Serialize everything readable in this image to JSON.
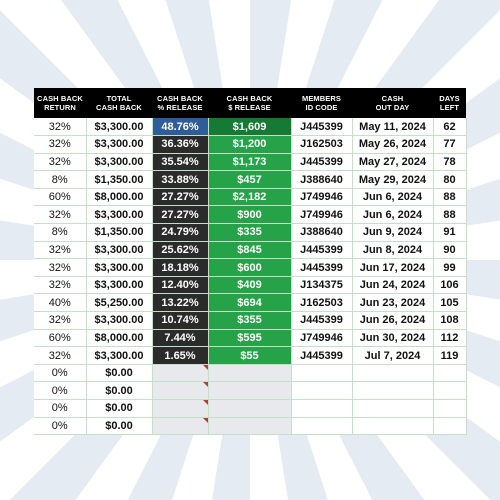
{
  "headers": {
    "return_l1": "CASH BACK",
    "return_l2": "RETURN",
    "total_l1": "TOTAL",
    "total_l2": "CASH BACK",
    "pct_l1": "CASH BACK",
    "pct_l2": "% RELEASE",
    "amt_l1": "CASH BACK",
    "amt_l2": "$ RELEASE",
    "id_l1": "MEMBERS",
    "id_l2": "ID CODE",
    "day_l1": "CASH",
    "day_l2": "OUT DAY",
    "left_l1": "DAYS",
    "left_l2": "LEFT"
  },
  "rows": [
    {
      "ret": "32%",
      "total": "$3,300.00",
      "pct": "48.76%",
      "amt": "$1,609",
      "id": "J445399",
      "day": "May 11, 2024",
      "left": "62"
    },
    {
      "ret": "32%",
      "total": "$3,300.00",
      "pct": "36.36%",
      "amt": "$1,200",
      "id": "J162503",
      "day": "May 26, 2024",
      "left": "77"
    },
    {
      "ret": "32%",
      "total": "$3,300.00",
      "pct": "35.54%",
      "amt": "$1,173",
      "id": "J445399",
      "day": "May 27, 2024",
      "left": "78"
    },
    {
      "ret": "8%",
      "total": "$1,350.00",
      "pct": "33.88%",
      "amt": "$457",
      "id": "J388640",
      "day": "May 29, 2024",
      "left": "80"
    },
    {
      "ret": "60%",
      "total": "$8,000.00",
      "pct": "27.27%",
      "amt": "$2,182",
      "id": "J749946",
      "day": "Jun 6, 2024",
      "left": "88"
    },
    {
      "ret": "32%",
      "total": "$3,300.00",
      "pct": "27.27%",
      "amt": "$900",
      "id": "J749946",
      "day": "Jun 6, 2024",
      "left": "88"
    },
    {
      "ret": "8%",
      "total": "$1,350.00",
      "pct": "24.79%",
      "amt": "$335",
      "id": "J388640",
      "day": "Jun 9, 2024",
      "left": "91"
    },
    {
      "ret": "32%",
      "total": "$3,300.00",
      "pct": "25.62%",
      "amt": "$845",
      "id": "J445399",
      "day": "Jun 8, 2024",
      "left": "90"
    },
    {
      "ret": "32%",
      "total": "$3,300.00",
      "pct": "18.18%",
      "amt": "$600",
      "id": "J445399",
      "day": "Jun 17, 2024",
      "left": "99"
    },
    {
      "ret": "32%",
      "total": "$3,300.00",
      "pct": "12.40%",
      "amt": "$409",
      "id": "J134375",
      "day": "Jun 24, 2024",
      "left": "106"
    },
    {
      "ret": "40%",
      "total": "$5,250.00",
      "pct": "13.22%",
      "amt": "$694",
      "id": "J162503",
      "day": "Jun 23, 2024",
      "left": "105"
    },
    {
      "ret": "32%",
      "total": "$3,300.00",
      "pct": "10.74%",
      "amt": "$355",
      "id": "J445399",
      "day": "Jun 26, 2024",
      "left": "108"
    },
    {
      "ret": "60%",
      "total": "$8,000.00",
      "pct": "7.44%",
      "amt": "$595",
      "id": "J749946",
      "day": "Jun 30, 2024",
      "left": "112"
    },
    {
      "ret": "32%",
      "total": "$3,300.00",
      "pct": "1.65%",
      "amt": "$55",
      "id": "J445399",
      "day": "Jul 7, 2024",
      "left": "119"
    },
    {
      "ret": "0%",
      "total": "$0.00",
      "pct": "",
      "amt": "",
      "id": "",
      "day": "",
      "left": ""
    },
    {
      "ret": "0%",
      "total": "$0.00",
      "pct": "",
      "amt": "",
      "id": "",
      "day": "",
      "left": ""
    },
    {
      "ret": "0%",
      "total": "$0.00",
      "pct": "",
      "amt": "",
      "id": "",
      "day": "",
      "left": ""
    },
    {
      "ret": "0%",
      "total": "$0.00",
      "pct": "",
      "amt": "",
      "id": "",
      "day": "",
      "left": ""
    }
  ],
  "colors": {
    "header_bg": "#000000",
    "pct_highlight": "#2e5d9a",
    "pct_cell": "#2b2b2b",
    "amt_highlight": "#157a34",
    "amt_cell": "#26a349",
    "grid_line": "#c6dfc9",
    "comment_marker": "#c0392b"
  }
}
